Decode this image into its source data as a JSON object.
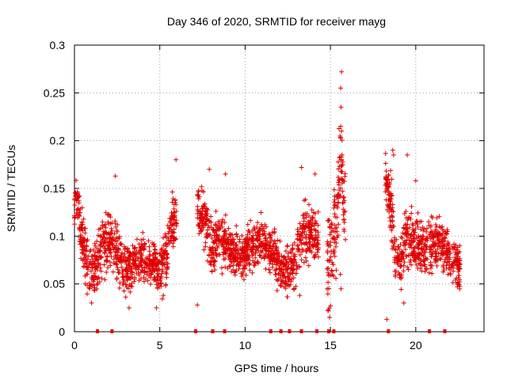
{
  "chart_data": {
    "type": "scatter",
    "title": "Day 346 of 2020, SRMTID for receiver mayg",
    "xlabel": "GPS time / hours",
    "ylabel": "SRMTID / TECUs",
    "xlim": [
      0,
      24
    ],
    "ylim": [
      0,
      0.3
    ],
    "x_ticks": [
      0,
      5,
      10,
      15,
      20
    ],
    "x_tick_labels": [
      "0",
      "5",
      "10",
      "15",
      "20"
    ],
    "y_ticks": [
      0,
      0.05,
      0.1,
      0.15,
      0.2,
      0.25,
      0.3
    ],
    "y_tick_labels": [
      "0",
      "0.05",
      "0.1",
      "0.15",
      "0.2",
      "0.25",
      "0.3"
    ],
    "grid": true,
    "marker": "plus",
    "color": "#e00000",
    "series": [
      {
        "name": "SRMTID",
        "segments": [
          {
            "x_start": 0.0,
            "x_end": 1.3,
            "profile": [
              [
                0.0,
                0.135
              ],
              [
                0.2,
                0.14
              ],
              [
                0.4,
                0.1
              ],
              [
                0.7,
                0.075
              ],
              [
                1.0,
                0.06
              ],
              [
                1.3,
                0.07
              ]
            ],
            "spread": 0.03
          },
          {
            "x_start": 1.3,
            "x_end": 3.0,
            "profile": [
              [
                1.3,
                0.07
              ],
              [
                1.6,
                0.085
              ],
              [
                2.0,
                0.1
              ],
              [
                2.4,
                0.085
              ],
              [
                2.8,
                0.07
              ],
              [
                3.0,
                0.065
              ]
            ],
            "spread": 0.03
          },
          {
            "x_start": 3.0,
            "x_end": 5.0,
            "profile": [
              [
                3.0,
                0.06
              ],
              [
                3.5,
                0.07
              ],
              [
                4.0,
                0.075
              ],
              [
                4.5,
                0.07
              ],
              [
                5.0,
                0.065
              ]
            ],
            "spread": 0.025
          },
          {
            "x_start": 5.0,
            "x_end": 6.0,
            "profile": [
              [
                5.0,
                0.065
              ],
              [
                5.4,
                0.08
              ],
              [
                5.7,
                0.11
              ],
              [
                6.0,
                0.12
              ]
            ],
            "spread": 0.03
          },
          {
            "x_start": 7.2,
            "x_end": 9.2,
            "profile": [
              [
                7.2,
                0.13
              ],
              [
                7.6,
                0.12
              ],
              [
                8.0,
                0.085
              ],
              [
                8.5,
                0.1
              ],
              [
                9.0,
                0.09
              ],
              [
                9.2,
                0.085
              ]
            ],
            "spread": 0.03
          },
          {
            "x_start": 9.2,
            "x_end": 11.8,
            "profile": [
              [
                9.2,
                0.085
              ],
              [
                9.8,
                0.08
              ],
              [
                10.4,
                0.09
              ],
              [
                11.0,
                0.095
              ],
              [
                11.5,
                0.085
              ],
              [
                11.8,
                0.08
              ]
            ],
            "spread": 0.025
          },
          {
            "x_start": 11.8,
            "x_end": 13.0,
            "profile": [
              [
                11.8,
                0.075
              ],
              [
                12.2,
                0.065
              ],
              [
                12.6,
                0.065
              ],
              [
                13.0,
                0.07
              ]
            ],
            "spread": 0.025
          },
          {
            "x_start": 13.0,
            "x_end": 14.3,
            "profile": [
              [
                13.0,
                0.08
              ],
              [
                13.4,
                0.11
              ],
              [
                13.8,
                0.1
              ],
              [
                14.3,
                0.095
              ]
            ],
            "spread": 0.03
          },
          {
            "x_start": 14.8,
            "x_end": 15.9,
            "profile": [
              [
                14.8,
                0.07
              ],
              [
                15.1,
                0.09
              ],
              [
                15.4,
                0.12
              ],
              [
                15.6,
                0.18
              ],
              [
                15.9,
                0.1
              ]
            ],
            "spread": 0.05
          },
          {
            "x_start": 18.2,
            "x_end": 19.5,
            "profile": [
              [
                18.2,
                0.155
              ],
              [
                18.5,
                0.14
              ],
              [
                18.8,
                0.08
              ],
              [
                19.1,
                0.07
              ],
              [
                19.5,
                0.11
              ]
            ],
            "spread": 0.03
          },
          {
            "x_start": 19.5,
            "x_end": 21.0,
            "profile": [
              [
                19.5,
                0.1
              ],
              [
                20.0,
                0.09
              ],
              [
                20.5,
                0.085
              ],
              [
                21.0,
                0.09
              ]
            ],
            "spread": 0.03
          },
          {
            "x_start": 21.0,
            "x_end": 22.6,
            "profile": [
              [
                21.0,
                0.09
              ],
              [
                21.5,
                0.095
              ],
              [
                22.0,
                0.075
              ],
              [
                22.6,
                0.07
              ]
            ],
            "spread": 0.025
          }
        ],
        "outliers": [
          [
            15.65,
            0.272
          ],
          [
            15.6,
            0.255
          ],
          [
            15.62,
            0.235
          ],
          [
            15.6,
            0.215
          ],
          [
            15.65,
            0.21
          ],
          [
            15.68,
            0.185
          ],
          [
            15.58,
            0.06
          ],
          [
            15.62,
            0.045
          ],
          [
            14.95,
            0.015
          ],
          [
            7.2,
            0.028
          ],
          [
            13.2,
            0.038
          ],
          [
            18.3,
            0.013
          ],
          [
            2.4,
            0.163
          ],
          [
            5.95,
            0.18
          ],
          [
            7.9,
            0.17
          ],
          [
            8.85,
            0.165
          ],
          [
            13.3,
            0.172
          ],
          [
            14.1,
            0.165
          ],
          [
            18.65,
            0.19
          ],
          [
            18.7,
            0.185
          ],
          [
            19.5,
            0.185
          ],
          [
            20.0,
            0.158
          ],
          [
            1.0,
            0.03
          ],
          [
            3.2,
            0.025
          ],
          [
            4.8,
            0.025
          ],
          [
            19.3,
            0.03
          ]
        ],
        "zero_markers": [
          1.35,
          2.2,
          7.1,
          8.1,
          8.8,
          11.5,
          12.1,
          12.6,
          13.3,
          14.2,
          14.9,
          15.2,
          18.4,
          20.8,
          21.7
        ]
      }
    ]
  }
}
